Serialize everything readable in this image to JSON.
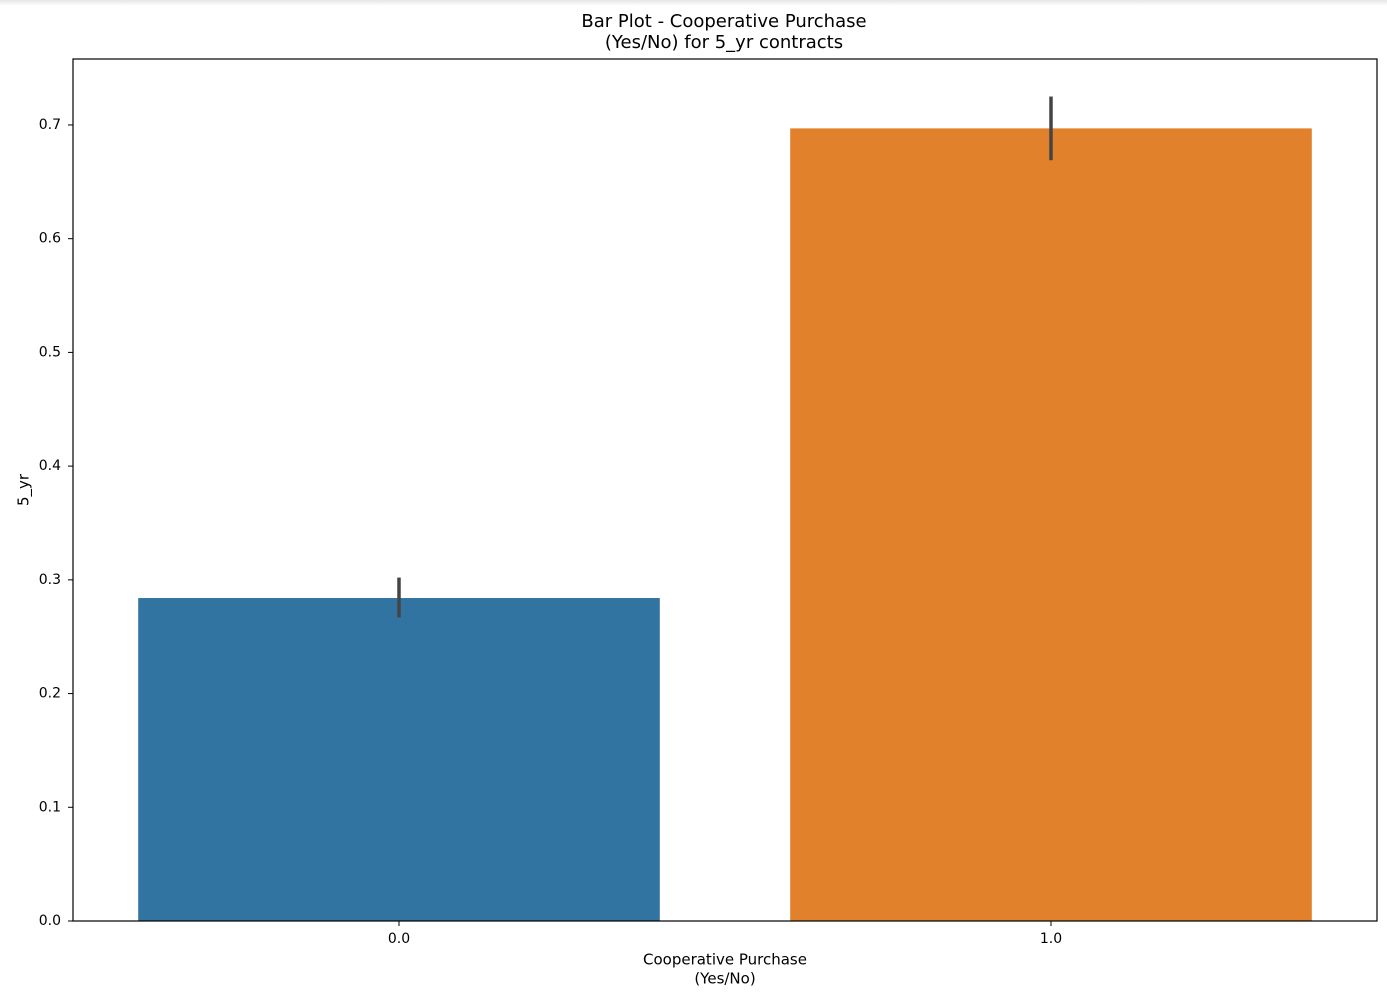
{
  "chart_data": {
    "type": "bar",
    "title": [
      "Bar Plot - Cooperative Purchase",
      "(Yes/No) for 5_yr contracts"
    ],
    "x_label": [
      "Cooperative Purchase",
      "(Yes/No)"
    ],
    "y_label": "5_yr",
    "categories": [
      "0.0",
      "1.0"
    ],
    "values": [
      0.284,
      0.697
    ],
    "ci_low": [
      0.267,
      0.669
    ],
    "ci_high": [
      0.302,
      0.725
    ],
    "colors": [
      "#3274a1",
      "#e1812c"
    ],
    "ylim": [
      0,
      0.758
    ],
    "yticks": [
      {
        "value": 0,
        "label": "0.0"
      },
      0.1,
      0.2,
      0.3,
      0.4,
      0.5,
      0.6,
      0.7
    ]
  }
}
